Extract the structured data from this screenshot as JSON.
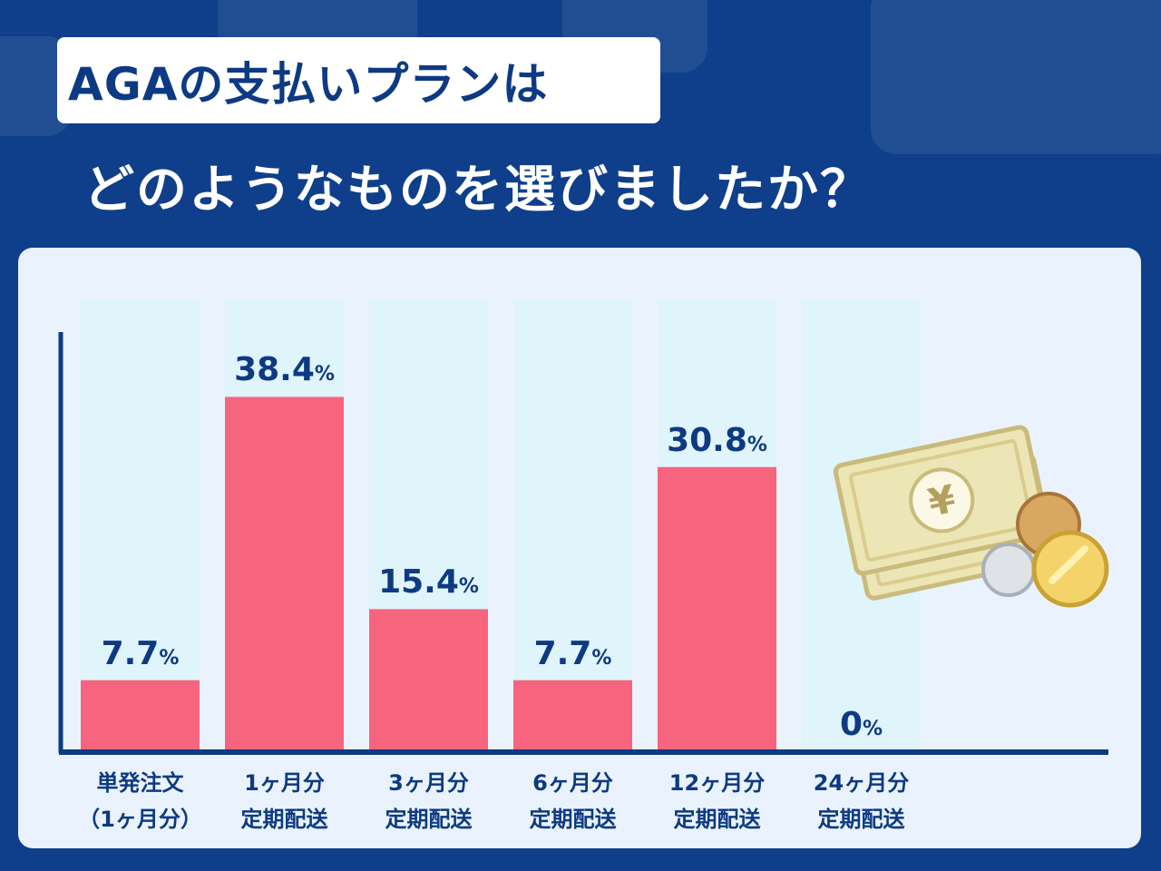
{
  "header": {
    "title_line1": "AGAの支払いプランは",
    "title_line2": "どのようなものを選びましたか？"
  },
  "colors": {
    "background": "#0f3f8a",
    "panel": "#eaf3fd",
    "column_track": "#dff4fb",
    "bar": "#f7647e",
    "text": "#0d3a82",
    "axis": "#0d3a82"
  },
  "illustration": {
    "icon": "yen-banknotes-and-coins-icon",
    "symbol": "¥"
  },
  "chart_data": {
    "type": "bar",
    "categories": [
      [
        "単発注文",
        "（1ヶ月分）"
      ],
      [
        "1ヶ月分",
        "定期配送"
      ],
      [
        "3ヶ月分",
        "定期配送"
      ],
      [
        "6ヶ月分",
        "定期配送"
      ],
      [
        "12ヶ月分",
        "定期配送"
      ],
      [
        "24ヶ月分",
        "定期配送"
      ]
    ],
    "values": [
      7.7,
      38.4,
      15.4,
      7.7,
      30.8,
      0
    ],
    "value_labels": [
      "7.7",
      "38.4",
      "15.4",
      "7.7",
      "30.8",
      "0"
    ],
    "unit": "%",
    "ylim": [
      0,
      45
    ],
    "grid": false,
    "legend": "none"
  }
}
